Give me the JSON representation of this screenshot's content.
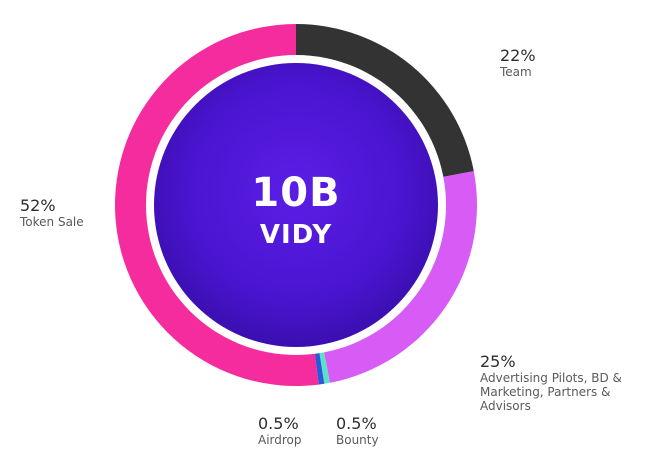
{
  "center": {
    "value": "10B",
    "unit": "VIDY"
  },
  "colors": {
    "team": "#333333",
    "advertising": "#d65cf5",
    "bounty": "#5ce0c8",
    "airdrop": "#2a5ad8",
    "token_sale": "#f52c9d",
    "center_fill": "#5219d9"
  },
  "chart_data": {
    "type": "pie",
    "style": "donut",
    "categories": [
      "Team",
      "Advertising Pilots, BD & Marketing, Partners & Advisors",
      "Bounty",
      "Airdrop",
      "Token Sale"
    ],
    "values": [
      22,
      25,
      0.5,
      0.5,
      52
    ],
    "value_labels": [
      "22%",
      "25%",
      "0.5%",
      "0.5%",
      "52%"
    ],
    "title": "",
    "legend": "none"
  },
  "labels": {
    "team": {
      "pct": "22%",
      "name": "Team"
    },
    "token_sale": {
      "pct": "52%",
      "name": "Token Sale"
    },
    "advertising": {
      "pct": "25%",
      "name": "Advertising Pilots, BD & Marketing, Partners & Advisors"
    },
    "airdrop": {
      "pct": "0.5%",
      "name": "Airdrop"
    },
    "bounty": {
      "pct": "0.5%",
      "name": "Bounty"
    }
  }
}
